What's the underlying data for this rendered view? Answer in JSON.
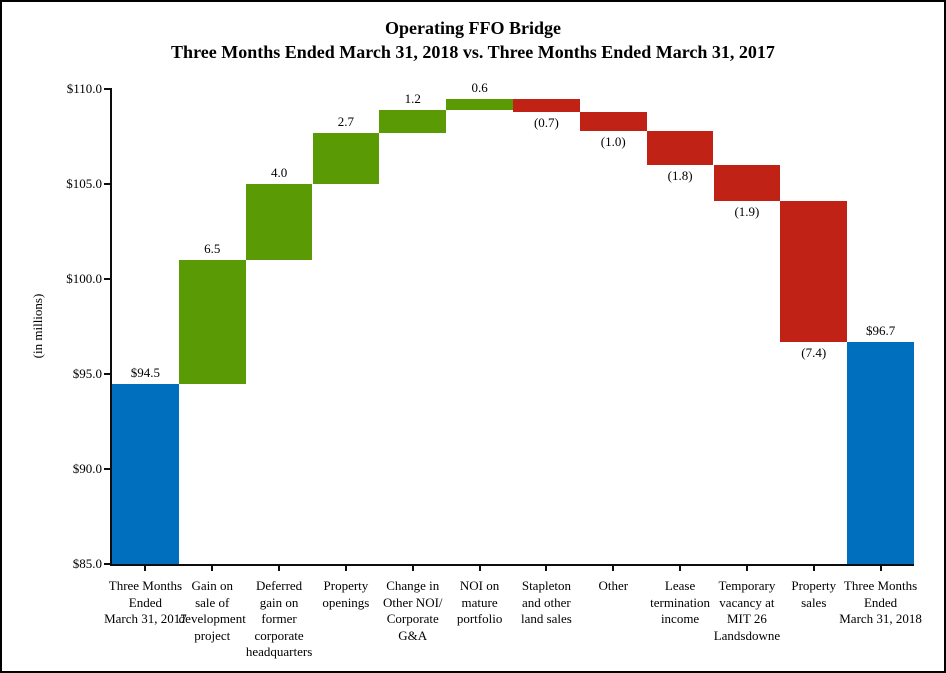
{
  "chart_data": {
    "type": "bar",
    "subtype": "waterfall",
    "title": "Operating FFO Bridge",
    "subtitle": "Three Months Ended March 31, 2018 vs. Three Months Ended March 31, 2017",
    "ylabel": "(in millions)",
    "xlabel": "",
    "ylim": [
      85,
      110
    ],
    "ytick_step": 5,
    "ytick_labels": [
      "$110.0",
      "$105.0",
      "$100.0",
      "$95.0",
      "$90.0",
      "$85.0"
    ],
    "grid": false,
    "legend": "none",
    "colors": {
      "total": "#0070BE",
      "increase": "#5A9A05",
      "decrease": "#C02215"
    },
    "bars": [
      {
        "category_lines": [
          "Three Months",
          "Ended",
          "March 31, 2017"
        ],
        "kind": "total",
        "value": 94.5,
        "label": "$94.5"
      },
      {
        "category_lines": [
          "Gain on",
          "sale of",
          "development",
          "project"
        ],
        "kind": "increase",
        "value": 6.5,
        "label": "6.5"
      },
      {
        "category_lines": [
          "Deferred",
          "gain on",
          "former",
          "corporate",
          "headquarters"
        ],
        "kind": "increase",
        "value": 4.0,
        "label": "4.0"
      },
      {
        "category_lines": [
          "Property",
          "openings"
        ],
        "kind": "increase",
        "value": 2.7,
        "label": "2.7"
      },
      {
        "category_lines": [
          "Change in",
          "Other NOI/",
          "Corporate",
          "G&A"
        ],
        "kind": "increase",
        "value": 1.2,
        "label": "1.2"
      },
      {
        "category_lines": [
          "NOI on",
          "mature",
          "portfolio"
        ],
        "kind": "increase",
        "value": 0.6,
        "label": "0.6"
      },
      {
        "category_lines": [
          "Stapleton",
          "and other",
          "land sales"
        ],
        "kind": "decrease",
        "value": -0.7,
        "label": "(0.7)"
      },
      {
        "category_lines": [
          "Other"
        ],
        "kind": "decrease",
        "value": -1.0,
        "label": "(1.0)"
      },
      {
        "category_lines": [
          "Lease",
          "termination",
          "income"
        ],
        "kind": "decrease",
        "value": -1.8,
        "label": "(1.8)"
      },
      {
        "category_lines": [
          "Temporary",
          "vacancy at",
          "MIT 26",
          "Landsdowne"
        ],
        "kind": "decrease",
        "value": -1.9,
        "label": "(1.9)"
      },
      {
        "category_lines": [
          "Property",
          "sales"
        ],
        "kind": "decrease",
        "value": -7.4,
        "label": "(7.4)"
      },
      {
        "category_lines": [
          "Three Months",
          "Ended",
          "March 31, 2018"
        ],
        "kind": "total",
        "value": 96.7,
        "label": "$96.7"
      }
    ]
  }
}
